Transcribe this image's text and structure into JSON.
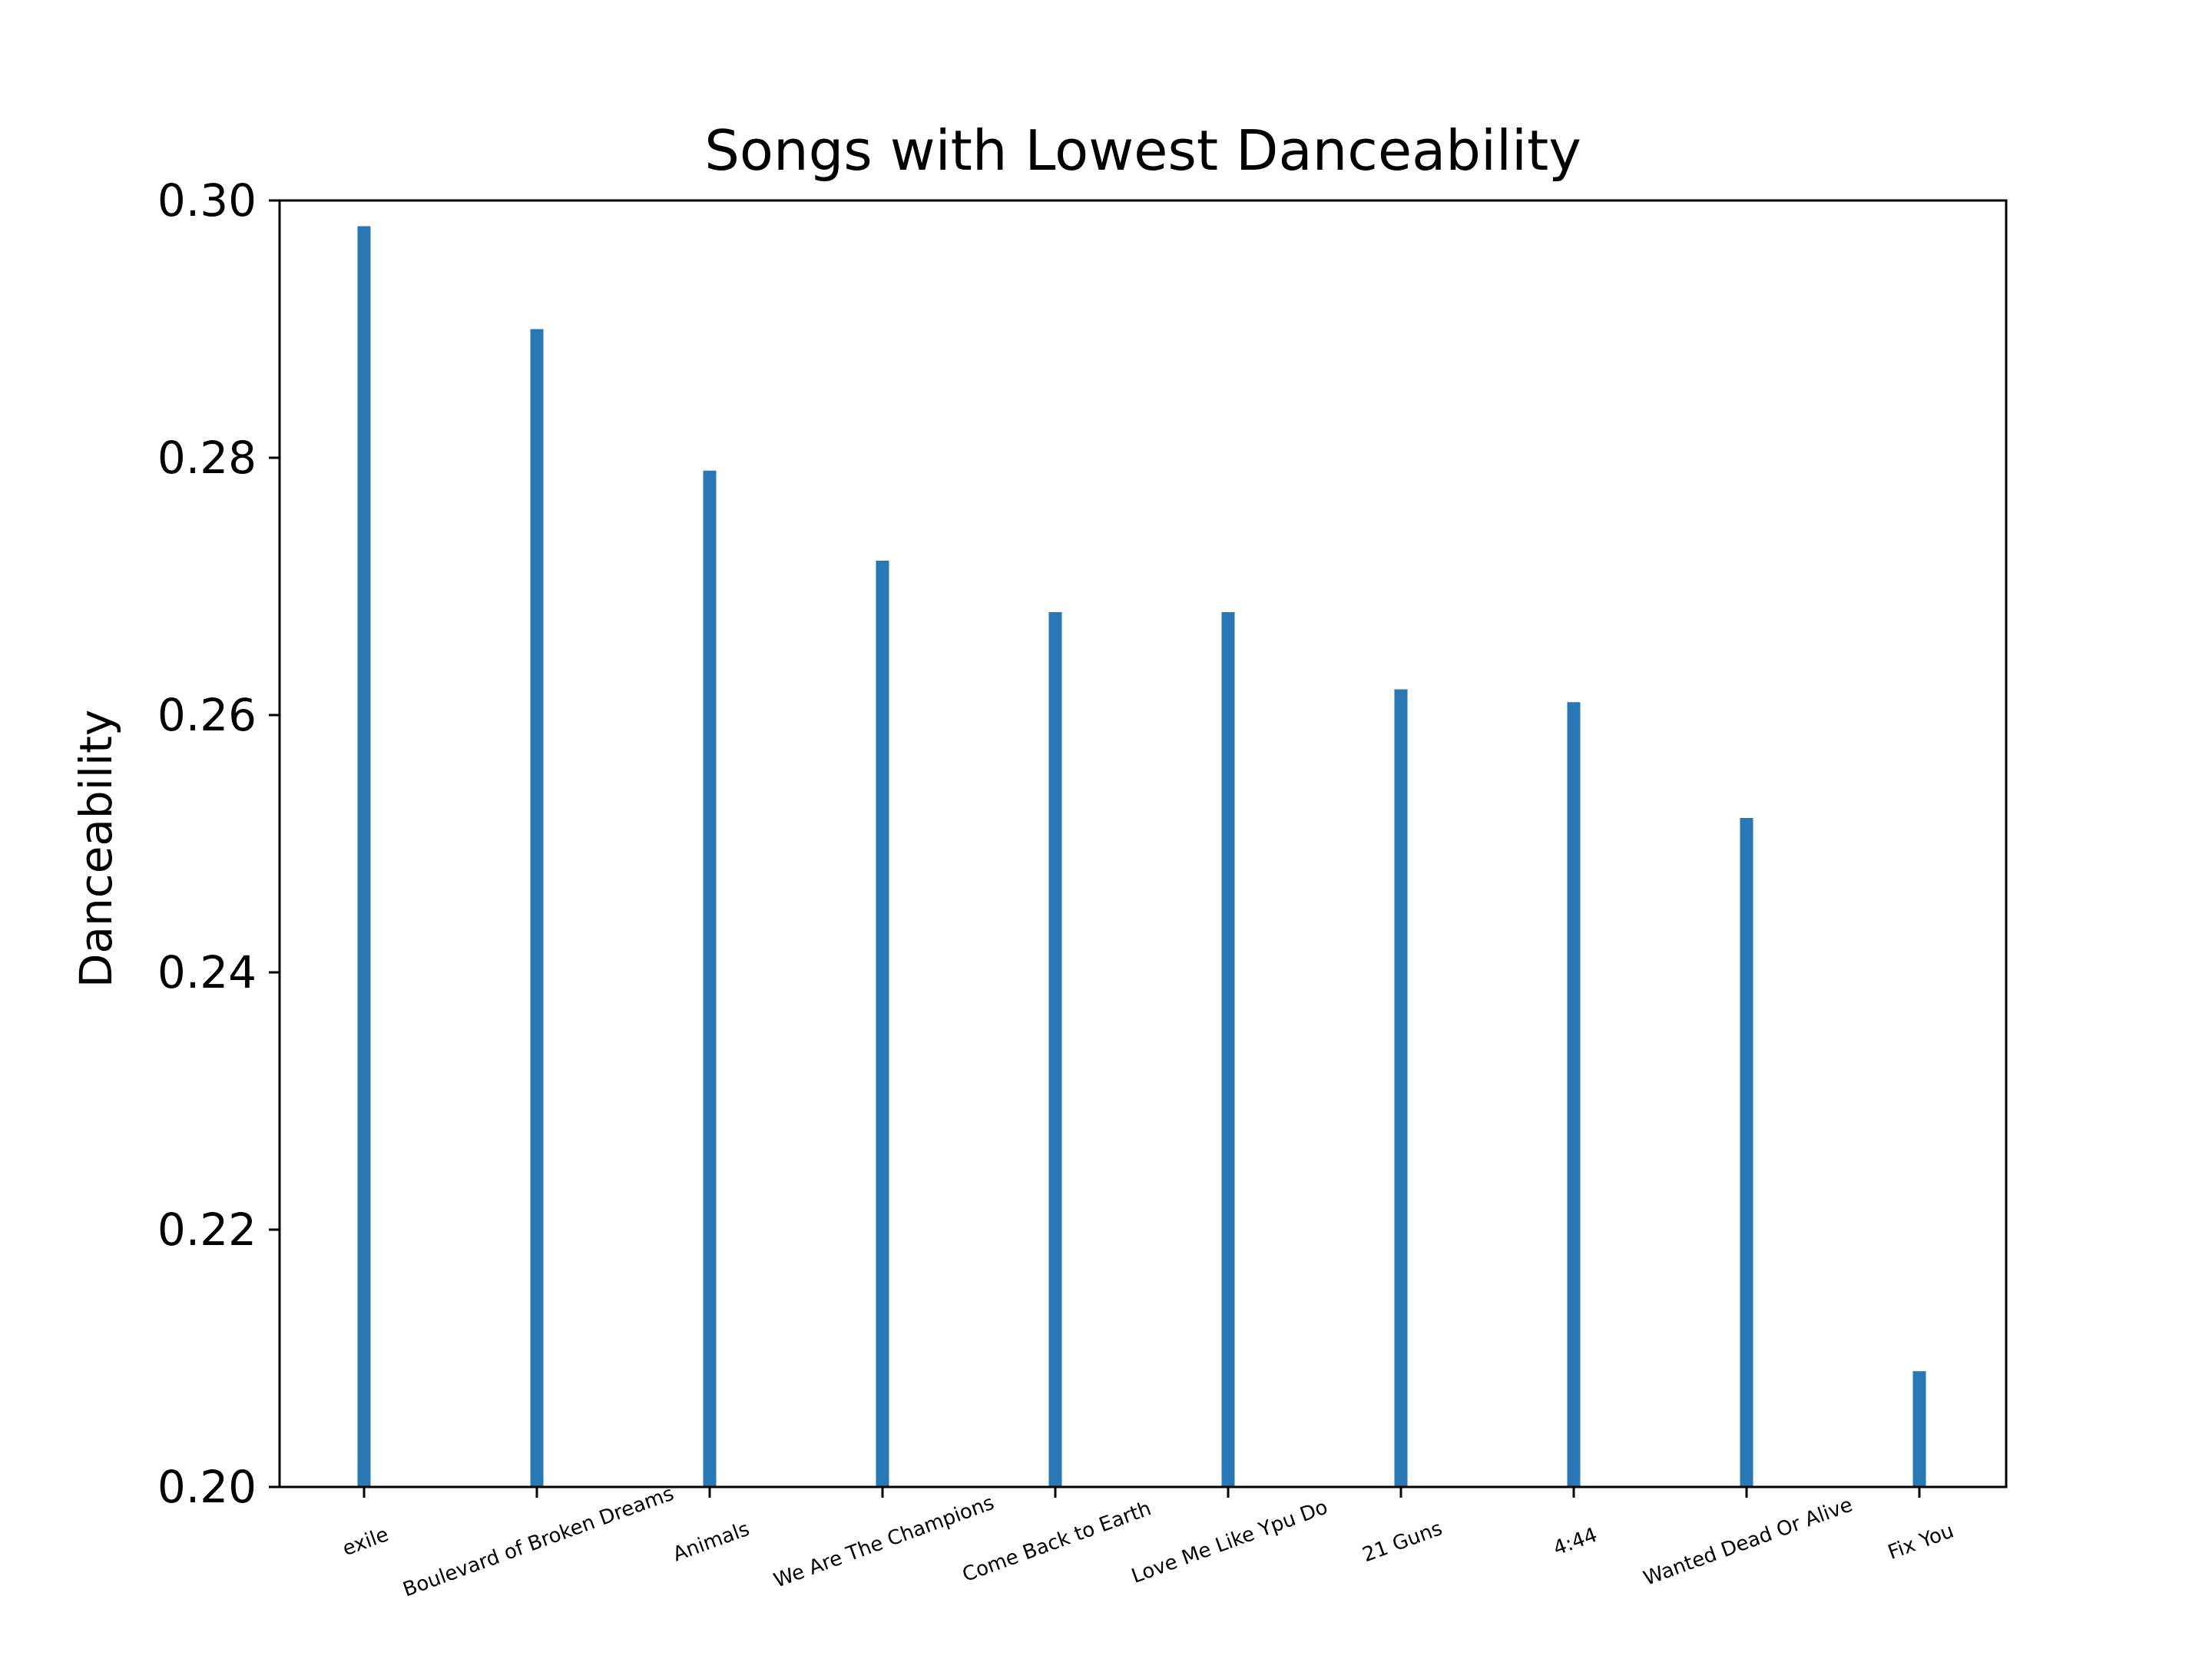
{
  "chart_data": {
    "type": "bar",
    "title": "Songs with Lowest Danceability",
    "xlabel": "",
    "ylabel": "Danceability",
    "categories": [
      "exile",
      "Boulevard of Broken Dreams",
      "Animals",
      "We Are The Champions",
      "Come Back to Earth",
      "Love Me Like Ypu Do",
      "21 Guns",
      "4:44",
      "Wanted Dead Or Alive",
      "Fix You"
    ],
    "values": [
      0.298,
      0.29,
      0.279,
      0.272,
      0.268,
      0.268,
      0.262,
      0.261,
      0.252,
      0.209
    ],
    "ylim": [
      0.2,
      0.3
    ],
    "yticks": [
      "0.20",
      "0.22",
      "0.24",
      "0.26",
      "0.28",
      "0.30"
    ],
    "xtick_rotation": 20,
    "grid": false,
    "legend": "none",
    "bar_color": "#2878b5"
  }
}
